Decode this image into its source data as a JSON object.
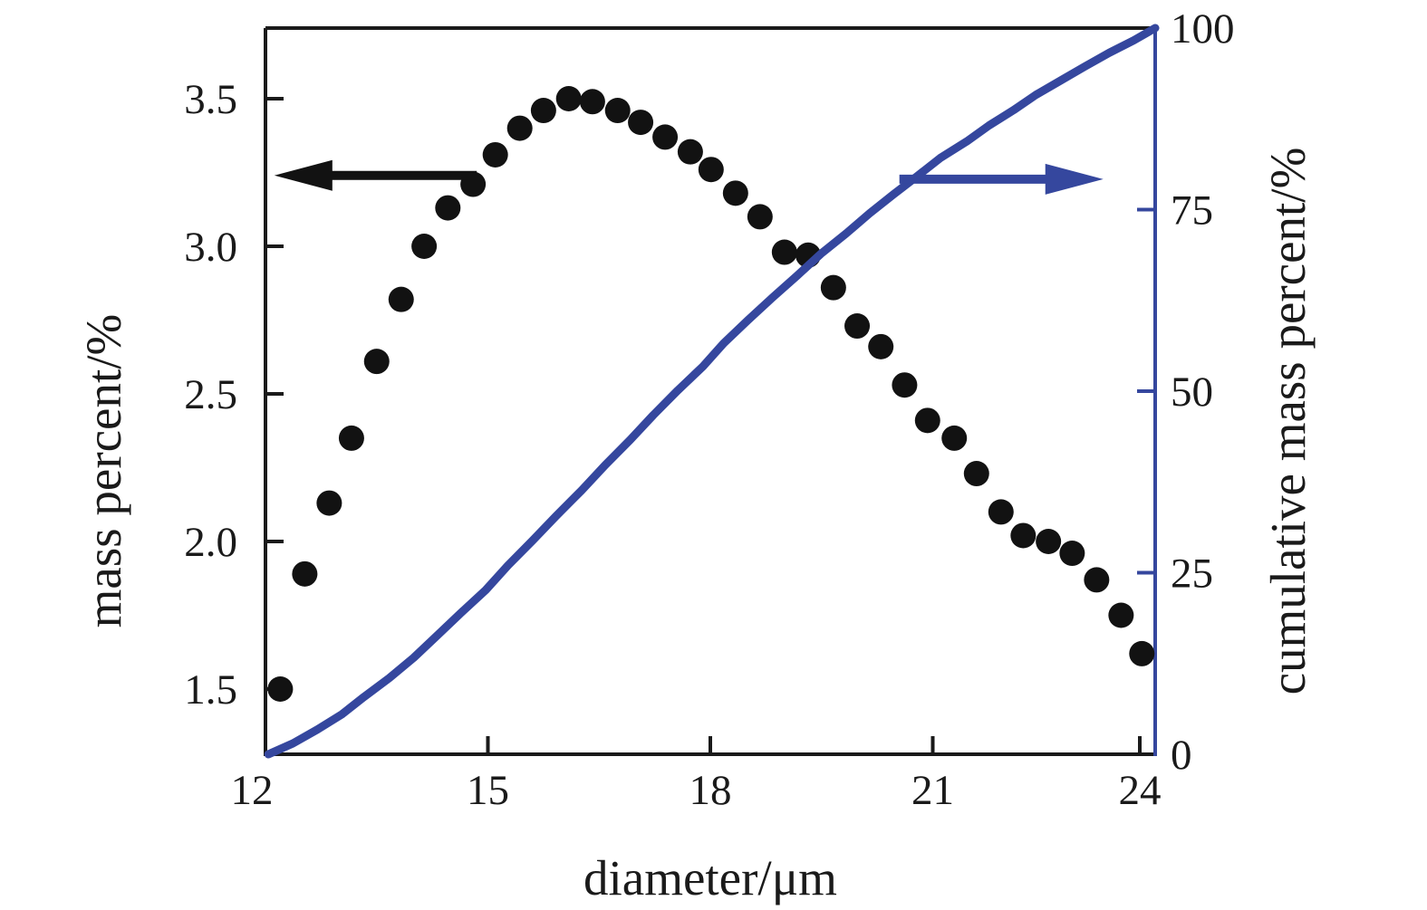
{
  "figure": {
    "background": "#ffffff",
    "ink_color": "#1a1a1a",
    "accent_blue": "#35479e"
  },
  "chart_data": {
    "type": "scatter+line",
    "title": "",
    "xlabel": "diameter/μm",
    "ylabel_left": "mass percent/%",
    "ylabel_right": "cumulative mass percent/%",
    "xlim": [
      12,
      24
    ],
    "ylim_left": [
      1.28,
      3.74
    ],
    "ylim_right": [
      0,
      100
    ],
    "grid": false,
    "legend": "none (arrows point each series to its axis)",
    "x_ticks": [
      "12",
      "15",
      "18",
      "21",
      "24"
    ],
    "y_ticks_left": [
      "1.5",
      "2.0",
      "2.5",
      "3.0",
      "3.5"
    ],
    "y_ticks_right": [
      "0",
      "25",
      "50",
      "75",
      "100"
    ],
    "series": [
      {
        "name": "mass percent",
        "axis": "left",
        "type": "scatter",
        "marker": "circle",
        "marker_radius": 14,
        "color": "#121212",
        "points": [
          [
            12.2,
            1.5
          ],
          [
            12.53,
            1.89
          ],
          [
            12.86,
            2.13
          ],
          [
            13.16,
            2.35
          ],
          [
            13.5,
            2.61
          ],
          [
            13.83,
            2.82
          ],
          [
            14.14,
            3.0
          ],
          [
            14.46,
            3.13
          ],
          [
            14.8,
            3.21
          ],
          [
            15.1,
            3.31
          ],
          [
            15.43,
            3.4
          ],
          [
            15.75,
            3.46
          ],
          [
            16.09,
            3.5
          ],
          [
            16.41,
            3.49
          ],
          [
            16.75,
            3.46
          ],
          [
            17.06,
            3.42
          ],
          [
            17.39,
            3.37
          ],
          [
            17.73,
            3.32
          ],
          [
            18.01,
            3.26
          ],
          [
            18.34,
            3.18
          ],
          [
            18.67,
            3.1
          ],
          [
            19.0,
            2.98
          ],
          [
            19.32,
            2.97
          ],
          [
            19.66,
            2.86
          ],
          [
            19.98,
            2.73
          ],
          [
            20.3,
            2.66
          ],
          [
            20.62,
            2.53
          ],
          [
            20.93,
            2.41
          ],
          [
            21.29,
            2.35
          ],
          [
            21.59,
            2.23
          ],
          [
            21.92,
            2.1
          ],
          [
            22.22,
            2.02
          ],
          [
            22.56,
            2.0
          ],
          [
            22.88,
            1.96
          ],
          [
            23.21,
            1.87
          ],
          [
            23.54,
            1.75
          ],
          [
            23.82,
            1.62
          ]
        ]
      },
      {
        "name": "cumulative mass percent",
        "axis": "right",
        "type": "line",
        "line_width": 9,
        "color": "#35479e",
        "points": [
          [
            12.04,
            0.0
          ],
          [
            12.37,
            1.5
          ],
          [
            12.7,
            3.4
          ],
          [
            13.03,
            5.5
          ],
          [
            13.33,
            7.9
          ],
          [
            13.67,
            10.5
          ],
          [
            14.0,
            13.3
          ],
          [
            14.31,
            16.3
          ],
          [
            14.63,
            19.4
          ],
          [
            14.97,
            22.6
          ],
          [
            15.27,
            26.0
          ],
          [
            15.6,
            29.4
          ],
          [
            15.92,
            32.8
          ],
          [
            16.26,
            36.3
          ],
          [
            16.58,
            39.8
          ],
          [
            16.92,
            43.3
          ],
          [
            17.23,
            46.7
          ],
          [
            17.56,
            50.1
          ],
          [
            17.9,
            53.4
          ],
          [
            18.18,
            56.6
          ],
          [
            18.51,
            59.8
          ],
          [
            18.84,
            62.9
          ],
          [
            19.17,
            65.9
          ],
          [
            19.49,
            68.9
          ],
          [
            19.83,
            71.7
          ],
          [
            20.15,
            74.5
          ],
          [
            20.47,
            77.1
          ],
          [
            20.79,
            79.6
          ],
          [
            21.1,
            82.1
          ],
          [
            21.46,
            84.4
          ],
          [
            21.76,
            86.6
          ],
          [
            22.09,
            88.7
          ],
          [
            22.39,
            90.8
          ],
          [
            22.73,
            92.8
          ],
          [
            23.05,
            94.7
          ],
          [
            23.38,
            96.6
          ],
          [
            23.71,
            98.3
          ],
          [
            24.0,
            100.0
          ]
        ]
      }
    ],
    "annotations": [
      {
        "type": "arrow",
        "direction": "left",
        "axis": "left",
        "y": 3.24,
        "x_tail": 14.85,
        "x_tip": 12.12,
        "color": "#121212"
      },
      {
        "type": "arrow",
        "direction": "right",
        "axis": "right",
        "y": 79.2,
        "x_tail": 20.55,
        "x_tip": 23.3,
        "color": "#35479e"
      }
    ]
  }
}
